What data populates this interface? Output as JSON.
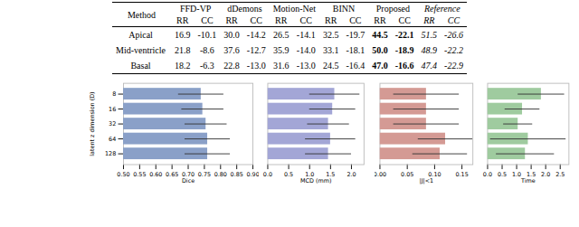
{
  "table": {
    "header": [
      "Method",
      "FFD-VP",
      "dDemons",
      "Motion-Net",
      "BINN",
      "Proposed",
      "Reference"
    ],
    "subheader": [
      "RR",
      "CC"
    ],
    "bold_column": "Proposed",
    "italic_column": "Reference",
    "rows": [
      {
        "label": "Apical",
        "values": [
          "16.9",
          "-10.1",
          "30.0",
          "-14.2",
          "26.5",
          "-14.1",
          "32.5",
          "-19.7",
          "44.5",
          "-22.1",
          "51.5",
          "-26.6"
        ]
      },
      {
        "label": "Mid-ventricle",
        "values": [
          "21.8",
          "-8.6",
          "37.6",
          "-12.7",
          "35.9",
          "-14.0",
          "33.1",
          "-18.1",
          "50.0",
          "-18.9",
          "48.9",
          "-22.2"
        ]
      },
      {
        "label": "Basal",
        "values": [
          "18.2",
          "-6.3",
          "22.8",
          "-13.0",
          "31.6",
          "-13.0",
          "24.5",
          "-16.4",
          "47.0",
          "-16.6",
          "47.4",
          "-22.9"
        ]
      }
    ]
  },
  "chart_data": [
    {
      "type": "bar",
      "orientation": "horizontal",
      "x_label": "Dice",
      "y_label": "latent z dimension (D)",
      "categories": [
        "8",
        "16",
        "32",
        "64",
        "128"
      ],
      "values": [
        0.74,
        0.745,
        0.755,
        0.76,
        0.76
      ],
      "errors": [
        0.07,
        0.065,
        0.065,
        0.07,
        0.07
      ],
      "color": "#8aa0c8",
      "xlim": [
        0.5,
        0.9
      ],
      "xticks": [
        {
          "value": 0.5,
          "label": "0.50"
        },
        {
          "value": 0.55,
          "label": "0.55"
        },
        {
          "value": 0.6,
          "label": "0.60"
        },
        {
          "value": 0.65,
          "label": "0.65"
        },
        {
          "value": 0.7,
          "label": "0.70"
        },
        {
          "value": 0.75,
          "label": "0.75"
        },
        {
          "value": 0.8,
          "label": "0.80"
        },
        {
          "value": 0.85,
          "label": "0.85"
        },
        {
          "value": 0.9,
          "label": "0.90"
        }
      ]
    },
    {
      "type": "bar",
      "orientation": "horizontal",
      "x_label": "MCD (mm)",
      "tick_labels": "x",
      "categories": [
        "8",
        "16",
        "32",
        "64",
        "128"
      ],
      "values": [
        1.6,
        1.55,
        1.45,
        1.5,
        1.45
      ],
      "errors": [
        0.6,
        0.55,
        0.5,
        0.6,
        0.55
      ],
      "color": "#a3a6d6",
      "xlim": [
        0,
        2.3
      ],
      "xticks": [
        {
          "value": 0,
          "label": "0.0"
        },
        {
          "value": 0.5,
          "label": "0.5"
        },
        {
          "value": 1,
          "label": "1.0"
        },
        {
          "value": 1.5,
          "label": "1.5"
        },
        {
          "value": 2,
          "label": "2.0"
        }
      ]
    },
    {
      "type": "bar",
      "orientation": "horizontal",
      "x_label": "|J|<1",
      "tick_labels": "x",
      "categories": [
        "8",
        "16",
        "32",
        "64",
        "128"
      ],
      "values": [
        0.085,
        0.085,
        0.085,
        0.12,
        0.11
      ],
      "errors": [
        0.06,
        0.06,
        0.06,
        0.05,
        0.05
      ],
      "color": "#d49a94",
      "xlim": [
        0,
        0.17
      ],
      "xticks": [
        {
          "value": 0,
          "label": "0.00"
        },
        {
          "value": 0.05,
          "label": "0.05"
        },
        {
          "value": 0.1,
          "label": "0.10"
        },
        {
          "value": 0.15,
          "label": "0.15"
        }
      ]
    },
    {
      "type": "bar",
      "orientation": "horizontal",
      "x_label": "Time",
      "tick_labels": "x",
      "categories": [
        "8",
        "16",
        "32",
        "64",
        "128"
      ],
      "values": [
        1.85,
        1.2,
        1.05,
        1.4,
        1.3
      ],
      "errors": [
        0.8,
        0.6,
        0.5,
        1.3,
        1.0
      ],
      "color": "#9fcb9f",
      "xlim": [
        0,
        2.8
      ],
      "xticks": [
        {
          "value": 0,
          "label": "0.0"
        },
        {
          "value": 0.5,
          "label": "0.5"
        },
        {
          "value": 1,
          "label": "1.0"
        },
        {
          "value": 1.5,
          "label": "1.5"
        },
        {
          "value": 2,
          "label": "2.0"
        },
        {
          "value": 2.5,
          "label": "2.5"
        }
      ]
    }
  ]
}
